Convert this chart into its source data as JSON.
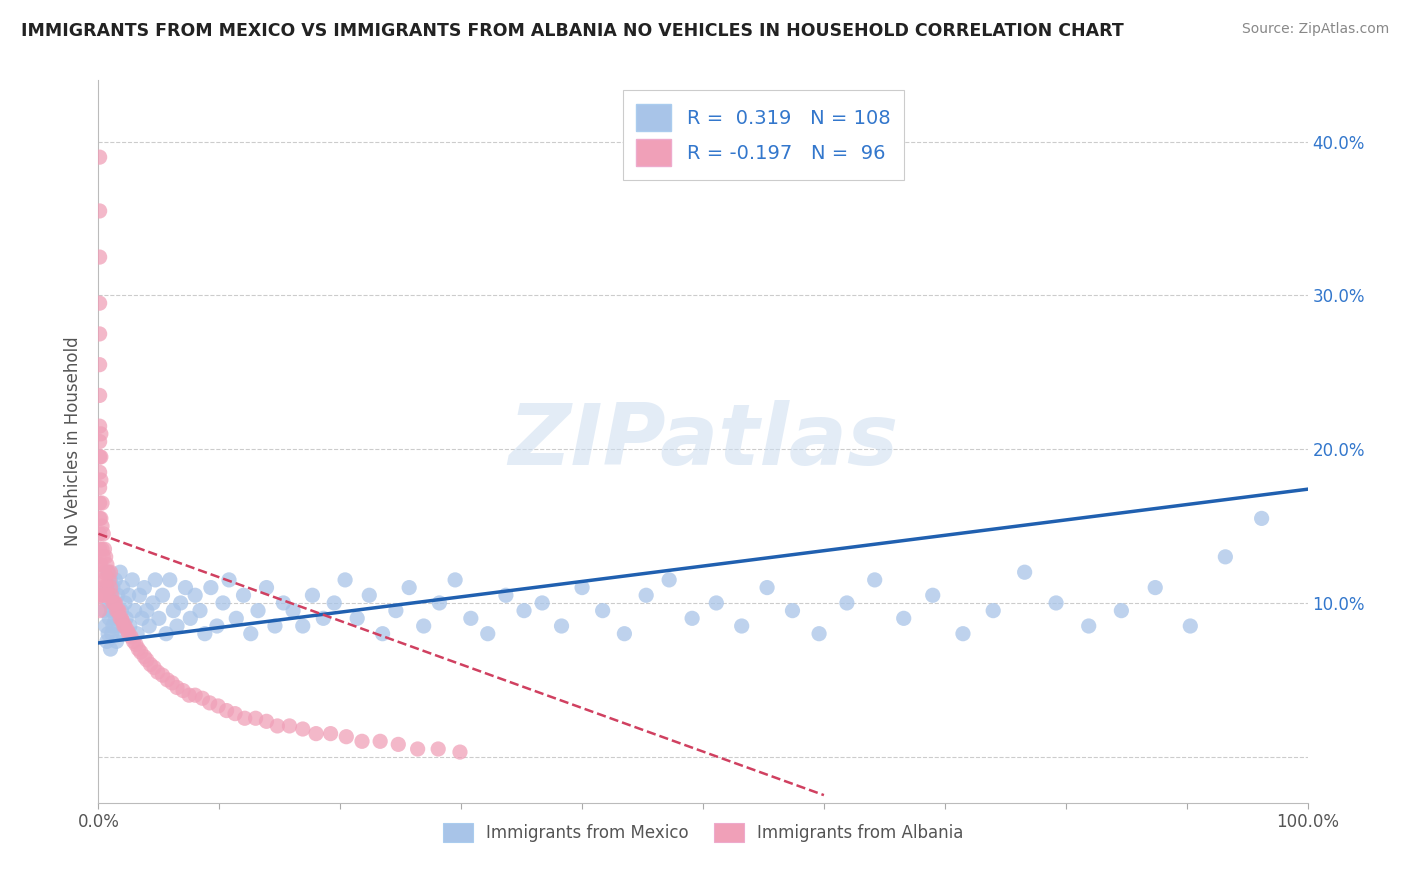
{
  "title": "IMMIGRANTS FROM MEXICO VS IMMIGRANTS FROM ALBANIA NO VEHICLES IN HOUSEHOLD CORRELATION CHART",
  "source": "Source: ZipAtlas.com",
  "ylabel": "No Vehicles in Household",
  "xlim": [
    0.0,
    1.0
  ],
  "ylim": [
    -0.03,
    0.44
  ],
  "x_ticks": [
    0.0,
    0.1,
    0.2,
    0.3,
    0.4,
    0.5,
    0.6,
    0.7,
    0.8,
    0.9,
    1.0
  ],
  "x_tick_labels": [
    "0.0%",
    "",
    "",
    "",
    "",
    "",
    "",
    "",
    "",
    "",
    "100.0%"
  ],
  "y_ticks": [
    0.0,
    0.1,
    0.2,
    0.3,
    0.4
  ],
  "right_y_tick_labels": [
    "",
    "10.0%",
    "20.0%",
    "30.0%",
    "40.0%"
  ],
  "mexico_color": "#a8c4e8",
  "albania_color": "#f0a0b8",
  "mexico_line_color": "#2060b0",
  "albania_line_color": "#d04060",
  "legend_text_color": "#3377cc",
  "watermark": "ZIPatlas",
  "mexico_R": 0.319,
  "mexico_N": 108,
  "albania_R": -0.197,
  "albania_N": 96,
  "mexico_scatter_x": [
    0.005,
    0.006,
    0.007,
    0.007,
    0.008,
    0.008,
    0.009,
    0.009,
    0.01,
    0.01,
    0.01,
    0.011,
    0.011,
    0.012,
    0.012,
    0.013,
    0.014,
    0.014,
    0.015,
    0.015,
    0.016,
    0.017,
    0.018,
    0.019,
    0.02,
    0.02,
    0.022,
    0.023,
    0.025,
    0.026,
    0.028,
    0.03,
    0.032,
    0.034,
    0.036,
    0.038,
    0.04,
    0.042,
    0.045,
    0.047,
    0.05,
    0.053,
    0.056,
    0.059,
    0.062,
    0.065,
    0.068,
    0.072,
    0.076,
    0.08,
    0.084,
    0.088,
    0.093,
    0.098,
    0.103,
    0.108,
    0.114,
    0.12,
    0.126,
    0.132,
    0.139,
    0.146,
    0.153,
    0.161,
    0.169,
    0.177,
    0.186,
    0.195,
    0.204,
    0.214,
    0.224,
    0.235,
    0.246,
    0.257,
    0.269,
    0.282,
    0.295,
    0.308,
    0.322,
    0.337,
    0.352,
    0.367,
    0.383,
    0.4,
    0.417,
    0.435,
    0.453,
    0.472,
    0.491,
    0.511,
    0.532,
    0.553,
    0.574,
    0.596,
    0.619,
    0.642,
    0.666,
    0.69,
    0.715,
    0.74,
    0.766,
    0.792,
    0.819,
    0.846,
    0.874,
    0.903,
    0.932,
    0.962
  ],
  "mexico_scatter_y": [
    0.095,
    0.085,
    0.11,
    0.075,
    0.12,
    0.08,
    0.1,
    0.09,
    0.115,
    0.07,
    0.105,
    0.095,
    0.08,
    0.11,
    0.085,
    0.1,
    0.09,
    0.115,
    0.095,
    0.075,
    0.105,
    0.085,
    0.12,
    0.095,
    0.08,
    0.11,
    0.1,
    0.09,
    0.105,
    0.085,
    0.115,
    0.095,
    0.08,
    0.105,
    0.09,
    0.11,
    0.095,
    0.085,
    0.1,
    0.115,
    0.09,
    0.105,
    0.08,
    0.115,
    0.095,
    0.085,
    0.1,
    0.11,
    0.09,
    0.105,
    0.095,
    0.08,
    0.11,
    0.085,
    0.1,
    0.115,
    0.09,
    0.105,
    0.08,
    0.095,
    0.11,
    0.085,
    0.1,
    0.095,
    0.085,
    0.105,
    0.09,
    0.1,
    0.115,
    0.09,
    0.105,
    0.08,
    0.095,
    0.11,
    0.085,
    0.1,
    0.115,
    0.09,
    0.08,
    0.105,
    0.095,
    0.1,
    0.085,
    0.11,
    0.095,
    0.08,
    0.105,
    0.115,
    0.09,
    0.1,
    0.085,
    0.11,
    0.095,
    0.08,
    0.1,
    0.115,
    0.09,
    0.105,
    0.08,
    0.095,
    0.12,
    0.1,
    0.085,
    0.095,
    0.11,
    0.085,
    0.13,
    0.155
  ],
  "albania_scatter_x": [
    0.001,
    0.001,
    0.001,
    0.001,
    0.001,
    0.001,
    0.001,
    0.001,
    0.001,
    0.001,
    0.001,
    0.001,
    0.001,
    0.001,
    0.001,
    0.001,
    0.001,
    0.001,
    0.001,
    0.001,
    0.002,
    0.002,
    0.002,
    0.002,
    0.002,
    0.002,
    0.003,
    0.003,
    0.003,
    0.003,
    0.004,
    0.004,
    0.004,
    0.005,
    0.005,
    0.005,
    0.006,
    0.006,
    0.007,
    0.007,
    0.008,
    0.008,
    0.009,
    0.01,
    0.01,
    0.011,
    0.012,
    0.013,
    0.014,
    0.015,
    0.016,
    0.017,
    0.018,
    0.019,
    0.02,
    0.021,
    0.022,
    0.024,
    0.025,
    0.027,
    0.029,
    0.031,
    0.033,
    0.035,
    0.038,
    0.04,
    0.043,
    0.046,
    0.049,
    0.053,
    0.057,
    0.061,
    0.065,
    0.07,
    0.075,
    0.08,
    0.086,
    0.092,
    0.099,
    0.106,
    0.113,
    0.121,
    0.13,
    0.139,
    0.148,
    0.158,
    0.169,
    0.18,
    0.192,
    0.205,
    0.218,
    0.233,
    0.248,
    0.264,
    0.281,
    0.299
  ],
  "albania_scatter_y": [
    0.39,
    0.355,
    0.325,
    0.295,
    0.275,
    0.255,
    0.235,
    0.215,
    0.205,
    0.195,
    0.185,
    0.175,
    0.165,
    0.155,
    0.145,
    0.135,
    0.125,
    0.115,
    0.105,
    0.095,
    0.21,
    0.195,
    0.18,
    0.155,
    0.125,
    0.105,
    0.165,
    0.15,
    0.135,
    0.105,
    0.145,
    0.13,
    0.11,
    0.135,
    0.12,
    0.105,
    0.13,
    0.115,
    0.125,
    0.11,
    0.12,
    0.105,
    0.115,
    0.12,
    0.11,
    0.105,
    0.1,
    0.1,
    0.1,
    0.095,
    0.095,
    0.095,
    0.09,
    0.09,
    0.088,
    0.085,
    0.085,
    0.082,
    0.08,
    0.078,
    0.075,
    0.073,
    0.07,
    0.068,
    0.065,
    0.063,
    0.06,
    0.058,
    0.055,
    0.053,
    0.05,
    0.048,
    0.045,
    0.043,
    0.04,
    0.04,
    0.038,
    0.035,
    0.033,
    0.03,
    0.028,
    0.025,
    0.025,
    0.023,
    0.02,
    0.02,
    0.018,
    0.015,
    0.015,
    0.013,
    0.01,
    0.01,
    0.008,
    0.005,
    0.005,
    0.003
  ],
  "mexico_trend_x": [
    0.0,
    1.0
  ],
  "mexico_trend_y": [
    0.074,
    0.174
  ],
  "albania_trend_x": [
    0.0,
    0.6
  ],
  "albania_trend_y": [
    0.145,
    -0.025
  ],
  "background_color": "#ffffff",
  "grid_color": "#cccccc",
  "legend_entries": [
    "Immigrants from Mexico",
    "Immigrants from Albania"
  ]
}
